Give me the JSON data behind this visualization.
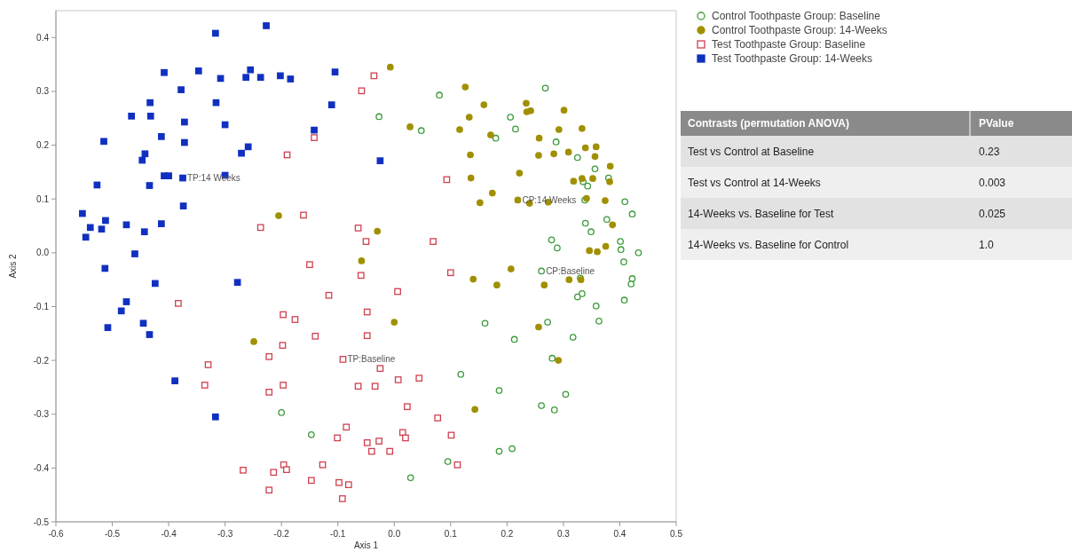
{
  "chart_data": [
    {
      "type": "scatter",
      "xlabel": "Axis 1",
      "ylabel": "Axis 2",
      "xlim": [
        -0.6,
        0.5
      ],
      "ylim": [
        -0.5,
        0.45
      ],
      "xticks": [
        -0.6,
        -0.5,
        -0.4,
        -0.3,
        -0.2,
        -0.1,
        {
          "value": 0,
          "label": "0.0"
        },
        0.1,
        0.2,
        0.3,
        0.4,
        0.5
      ],
      "yticks": [
        -0.5,
        -0.4,
        -0.3,
        -0.2,
        -0.1,
        {
          "value": 0,
          "label": "0.0"
        },
        0.1,
        0.2,
        0.3,
        0.4
      ],
      "grid": false,
      "legend": "top right",
      "annotations": [
        {
          "text": "TP:14 Weeks",
          "x": -0.375,
          "y": 0.139
        },
        {
          "text": "TP:Baseline",
          "x": -0.091,
          "y": -0.198
        },
        {
          "text": "CP:14 Weeks",
          "x": 0.219,
          "y": 0.098
        },
        {
          "text": "CP:Baseline",
          "x": 0.261,
          "y": -0.034
        }
      ],
      "series": [
        {
          "name": "Control Toothpaste Group: Baseline",
          "color": "#3a9a3a",
          "marker": "circle",
          "x": [
            -0.027,
            0.048,
            0.08,
            0.268,
            0.206,
            0.215,
            0.18,
            0.287,
            0.325,
            0.356,
            0.38,
            0.335,
            0.343,
            0.409,
            0.422,
            0.338,
            0.377,
            0.339,
            0.349,
            0.279,
            0.289,
            0.401,
            0.402,
            0.433,
            0.407,
            0.422,
            0.42,
            0.33,
            0.333,
            0.325,
            0.358,
            0.363,
            0.408,
            0.272,
            0.317,
            0.161,
            0.213,
            0.28,
            0.118,
            0.186,
            0.304,
            0.261,
            0.284,
            0.186,
            0.209,
            0.095,
            0.029,
            -0.2,
            -0.147,
            0.261
          ],
          "values": [
            0.253,
            0.227,
            0.293,
            0.306,
            0.252,
            0.23,
            0.213,
            0.206,
            0.177,
            0.156,
            0.139,
            0.132,
            0.124,
            0.095,
            0.072,
            0.098,
            0.062,
            0.055,
            0.039,
            0.024,
            0.009,
            0.021,
            0.006,
            0.0,
            -0.017,
            -0.048,
            -0.058,
            -0.047,
            -0.076,
            -0.082,
            -0.099,
            -0.127,
            -0.088,
            -0.129,
            -0.157,
            -0.131,
            -0.161,
            -0.196,
            -0.226,
            -0.256,
            -0.263,
            -0.284,
            -0.292,
            -0.369,
            -0.364,
            -0.388,
            -0.418,
            -0.297,
            -0.338,
            -0.034
          ]
        },
        {
          "name": "Control Toothpaste Group: 14-Weeks",
          "color": "#a09000",
          "marker": "circle",
          "x": [
            -0.007,
            0.028,
            0.126,
            0.159,
            0.133,
            0.116,
            0.171,
            0.234,
            0.242,
            0.235,
            0.301,
            0.333,
            0.292,
            0.257,
            0.256,
            0.283,
            0.309,
            0.339,
            0.358,
            0.356,
            0.383,
            0.135,
            0.136,
            0.222,
            0.318,
            0.333,
            0.352,
            0.382,
            0.174,
            0.152,
            0.24,
            0.273,
            0.341,
            0.374,
            0.387,
            0.346,
            0.36,
            0.375,
            -0.205,
            -0.03,
            -0.058,
            0.14,
            0.207,
            0.182,
            0.266,
            0.31,
            0.331,
            0.0,
            0.256,
            0.291,
            -0.249,
            0.143,
            0.219
          ],
          "values": [
            0.345,
            0.234,
            0.308,
            0.275,
            0.252,
            0.229,
            0.219,
            0.278,
            0.264,
            0.262,
            0.265,
            0.231,
            0.229,
            0.213,
            0.181,
            0.184,
            0.187,
            0.195,
            0.197,
            0.179,
            0.161,
            0.182,
            0.139,
            0.148,
            0.133,
            0.138,
            0.138,
            0.132,
            0.111,
            0.093,
            0.092,
            0.094,
            0.101,
            0.097,
            0.052,
            0.004,
            0.002,
            0.012,
            0.069,
            0.04,
            -0.015,
            -0.049,
            -0.03,
            -0.06,
            -0.06,
            -0.05,
            -0.05,
            -0.129,
            -0.138,
            -0.2,
            -0.165,
            -0.291,
            0.098
          ]
        },
        {
          "name": "Test Toothpaste Group: Baseline",
          "color": "#d04050",
          "marker": "square",
          "x": [
            -0.036,
            -0.058,
            -0.142,
            -0.19,
            -0.237,
            -0.161,
            -0.064,
            -0.05,
            0.069,
            0.093,
            -0.15,
            -0.116,
            -0.059,
            0.006,
            0.1,
            -0.383,
            -0.197,
            -0.176,
            -0.198,
            -0.14,
            -0.048,
            -0.048,
            -0.222,
            -0.33,
            -0.336,
            -0.197,
            -0.222,
            -0.064,
            -0.034,
            -0.025,
            0.007,
            0.044,
            0.023,
            0.077,
            -0.085,
            -0.101,
            0.015,
            0.02,
            0.101,
            -0.048,
            -0.027,
            -0.04,
            -0.008,
            -0.127,
            0.112,
            -0.268,
            -0.196,
            -0.214,
            -0.191,
            -0.147,
            -0.098,
            -0.081,
            -0.092,
            -0.222,
            -0.091
          ],
          "values": [
            0.329,
            0.301,
            0.214,
            0.182,
            0.047,
            0.07,
            0.046,
            0.021,
            0.021,
            0.136,
            -0.022,
            -0.079,
            -0.042,
            -0.072,
            -0.037,
            -0.094,
            -0.115,
            -0.124,
            -0.172,
            -0.155,
            -0.11,
            -0.154,
            -0.193,
            -0.208,
            -0.246,
            -0.246,
            -0.259,
            -0.248,
            -0.248,
            -0.215,
            -0.236,
            -0.233,
            -0.286,
            -0.307,
            -0.324,
            -0.344,
            -0.334,
            -0.344,
            -0.339,
            -0.353,
            -0.35,
            -0.369,
            -0.369,
            -0.394,
            -0.394,
            -0.404,
            -0.394,
            -0.408,
            -0.403,
            -0.423,
            -0.427,
            -0.431,
            -0.457,
            -0.441,
            -0.198
          ]
        },
        {
          "name": "Test Toothpaste Group: 14-Weeks",
          "color": "#1030c0",
          "marker": "square",
          "x": [
            -0.227,
            -0.317,
            -0.347,
            -0.408,
            -0.378,
            -0.316,
            -0.433,
            -0.466,
            -0.432,
            -0.413,
            -0.372,
            -0.372,
            -0.515,
            -0.442,
            -0.447,
            -0.408,
            -0.4,
            -0.375,
            -0.3,
            -0.271,
            -0.259,
            -0.3,
            -0.308,
            -0.263,
            -0.255,
            -0.237,
            -0.202,
            -0.184,
            -0.105,
            -0.111,
            -0.142,
            -0.025,
            -0.527,
            -0.434,
            -0.374,
            -0.413,
            -0.553,
            -0.539,
            -0.547,
            -0.519,
            -0.512,
            -0.475,
            -0.443,
            -0.46,
            -0.513,
            -0.424,
            -0.278,
            -0.475,
            -0.484,
            -0.445,
            -0.434,
            -0.508,
            -0.389,
            -0.317
          ],
          "values": [
            0.422,
            0.408,
            0.338,
            0.335,
            0.303,
            0.279,
            0.279,
            0.254,
            0.254,
            0.216,
            0.243,
            0.205,
            0.207,
            0.184,
            0.172,
            0.143,
            0.143,
            0.139,
            0.144,
            0.185,
            0.197,
            0.238,
            0.324,
            0.326,
            0.34,
            0.326,
            0.329,
            0.323,
            0.336,
            0.275,
            0.228,
            0.171,
            0.126,
            0.125,
            0.087,
            0.054,
            0.073,
            0.047,
            0.029,
            0.044,
            0.06,
            0.052,
            0.039,
            -0.002,
            -0.029,
            -0.057,
            -0.055,
            -0.091,
            -0.108,
            -0.131,
            -0.152,
            -0.139,
            -0.238,
            -0.305
          ]
        }
      ]
    },
    {
      "type": "other",
      "annotations": [
        "Contrasts (permutation ANOVA)",
        "PValue",
        "Test vs Control at Baseline",
        "0.23",
        "Test vs Control at 14-Weeks",
        "0.003",
        "14-Weeks vs. Baseline for Test",
        "0.025",
        "14-Weeks vs. Baseline for Control",
        "1.0"
      ]
    }
  ]
}
